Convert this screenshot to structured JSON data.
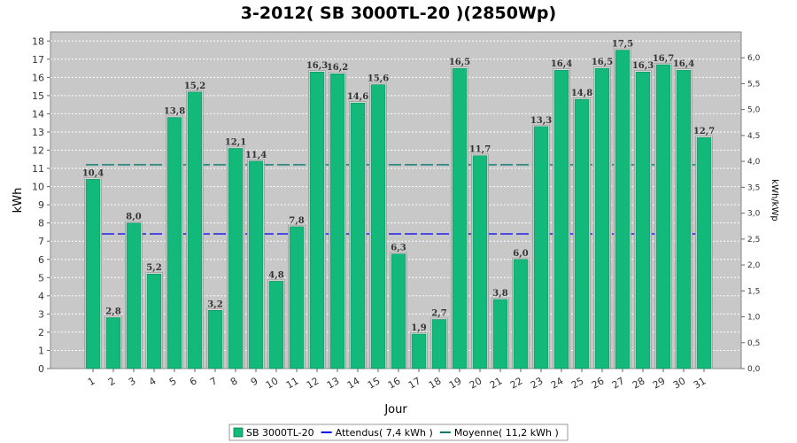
{
  "chart_data": {
    "type": "bar",
    "title": "3-2012( SB 3000TL-20 )(2850Wp)",
    "xlabel": "Jour",
    "ylabel": "kWh",
    "y2label": "kWh/kWp",
    "ylim": [
      0,
      18.5
    ],
    "y2lim": [
      0,
      6.5
    ],
    "yticks": [
      "0",
      "1",
      "2",
      "3",
      "4",
      "5",
      "6",
      "7",
      "8",
      "9",
      "10",
      "11",
      "12",
      "13",
      "14",
      "15",
      "16",
      "17",
      "18"
    ],
    "y2ticks": [
      "0,0",
      "0,5",
      "1,0",
      "1,5",
      "2,0",
      "2,5",
      "3,0",
      "3,5",
      "4,0",
      "4,5",
      "5,0",
      "5,5",
      "6,0"
    ],
    "categories": [
      "1",
      "2",
      "3",
      "4",
      "5",
      "6",
      "7",
      "8",
      "9",
      "10",
      "11",
      "12",
      "13",
      "14",
      "15",
      "16",
      "17",
      "18",
      "19",
      "20",
      "21",
      "22",
      "23",
      "24",
      "25",
      "26",
      "27",
      "28",
      "29",
      "30",
      "31"
    ],
    "series": [
      {
        "name": "SB 3000TL-20",
        "color": "#12b97a",
        "values": [
          10.4,
          2.8,
          8.0,
          5.2,
          13.8,
          15.2,
          3.2,
          12.1,
          11.4,
          4.8,
          7.8,
          16.3,
          16.2,
          14.6,
          15.6,
          6.3,
          1.9,
          2.7,
          16.5,
          11.7,
          3.8,
          6.0,
          13.3,
          16.4,
          14.8,
          16.5,
          17.5,
          16.3,
          16.7,
          16.4,
          12.7
        ],
        "labels": [
          "10,4",
          "2,8",
          "8,0",
          "5,2",
          "13,8",
          "15,2",
          "3,2",
          "12,1",
          "11,4",
          "4,8",
          "7,8",
          "16,3",
          "16,2",
          "14,6",
          "15,6",
          "6,3",
          "1,9",
          "2,7",
          "16,5",
          "11,7",
          "3,8",
          "6,0",
          "13,3",
          "16,4",
          "14,8",
          "16,5",
          "17,5",
          "16,3",
          "16,7",
          "16,4",
          "12,7"
        ]
      }
    ],
    "reference_lines": [
      {
        "name": "Attendus",
        "value": 7.4,
        "color": "#0000ee"
      },
      {
        "name": "Moyenne",
        "value": 11.2,
        "color": "#007a6a"
      }
    ],
    "legend": [
      {
        "label": "SB 3000TL-20",
        "color": "#12b97a",
        "kind": "box"
      },
      {
        "label": "Attendus( 7,4 kWh )",
        "color": "#0000ee",
        "kind": "line"
      },
      {
        "label": "Moyenne( 11,2 kWh )",
        "color": "#007a6a",
        "kind": "line"
      }
    ],
    "legend_position": "bottom",
    "grid": true
  }
}
